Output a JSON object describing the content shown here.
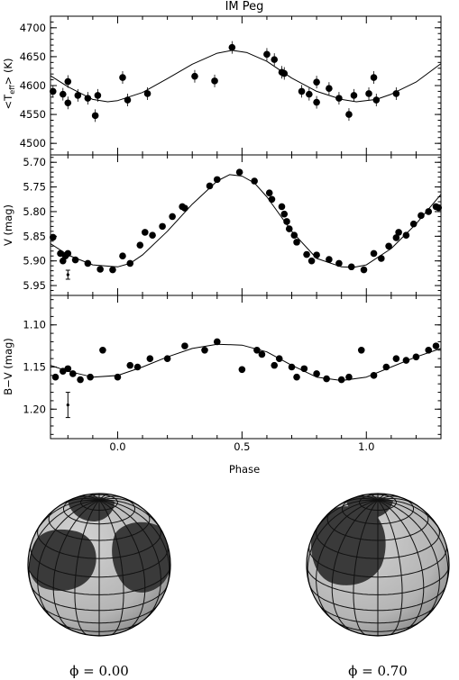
{
  "chart_data": [
    {
      "type": "scatter",
      "title": "IM Peg",
      "ylabel": "<T_eff> (K)",
      "xlim": [
        -0.27,
        1.3
      ],
      "ylim": [
        4480,
        4720
      ],
      "yticks": [
        4500,
        4550,
        4600,
        4650,
        4700
      ],
      "points": [
        [
          -0.26,
          4590
        ],
        [
          -0.22,
          4585
        ],
        [
          -0.2,
          4607
        ],
        [
          -0.2,
          4570
        ],
        [
          -0.16,
          4583
        ],
        [
          -0.12,
          4578
        ],
        [
          -0.09,
          4548
        ],
        [
          -0.08,
          4583
        ],
        [
          0.02,
          4614
        ],
        [
          0.04,
          4575
        ],
        [
          0.12,
          4586
        ],
        [
          0.31,
          4616
        ],
        [
          0.39,
          4608
        ],
        [
          0.46,
          4666
        ],
        [
          0.6,
          4654
        ],
        [
          0.63,
          4645
        ],
        [
          0.66,
          4623
        ],
        [
          0.67,
          4621
        ],
        [
          0.74,
          4590
        ],
        [
          0.77,
          4585
        ],
        [
          0.8,
          4606
        ],
        [
          0.8,
          4571
        ],
        [
          0.85,
          4595
        ],
        [
          0.89,
          4578
        ],
        [
          0.93,
          4550
        ],
        [
          0.95,
          4583
        ],
        [
          1.01,
          4586
        ],
        [
          1.03,
          4614
        ],
        [
          1.04,
          4575
        ],
        [
          1.12,
          4586
        ]
      ],
      "model_curve": [
        [
          -0.27,
          4617
        ],
        [
          -0.2,
          4598
        ],
        [
          -0.1,
          4576
        ],
        [
          -0.04,
          4572
        ],
        [
          0.0,
          4574
        ],
        [
          0.1,
          4588
        ],
        [
          0.2,
          4612
        ],
        [
          0.3,
          4637
        ],
        [
          0.4,
          4656
        ],
        [
          0.46,
          4661
        ],
        [
          0.52,
          4657
        ],
        [
          0.6,
          4642
        ],
        [
          0.7,
          4613
        ],
        [
          0.8,
          4590
        ],
        [
          0.9,
          4576
        ],
        [
          0.96,
          4572
        ],
        [
          1.04,
          4576
        ],
        [
          1.1,
          4585
        ],
        [
          1.2,
          4606
        ],
        [
          1.3,
          4638
        ]
      ]
    },
    {
      "type": "scatter",
      "ylabel": "V (mag)",
      "xlim": [
        -0.27,
        1.3
      ],
      "ylim": [
        5.97,
        5.685
      ],
      "yticks": [
        5.7,
        5.75,
        5.8,
        5.85,
        5.9,
        5.95
      ],
      "points": [
        [
          -0.26,
          5.852
        ],
        [
          -0.23,
          5.885
        ],
        [
          -0.22,
          5.9
        ],
        [
          -0.21,
          5.89
        ],
        [
          -0.2,
          5.885
        ],
        [
          -0.17,
          5.898
        ],
        [
          -0.12,
          5.905
        ],
        [
          -0.07,
          5.917
        ],
        [
          -0.02,
          5.918
        ],
        [
          0.02,
          5.89
        ],
        [
          0.05,
          5.905
        ],
        [
          0.09,
          5.868
        ],
        [
          0.11,
          5.842
        ],
        [
          0.14,
          5.848
        ],
        [
          0.18,
          5.83
        ],
        [
          0.22,
          5.81
        ],
        [
          0.26,
          5.79
        ],
        [
          0.27,
          5.793
        ],
        [
          0.37,
          5.748
        ],
        [
          0.4,
          5.735
        ],
        [
          0.49,
          5.72
        ],
        [
          0.55,
          5.738
        ],
        [
          0.61,
          5.762
        ],
        [
          0.62,
          5.775
        ],
        [
          0.66,
          5.79
        ],
        [
          0.67,
          5.805
        ],
        [
          0.68,
          5.82
        ],
        [
          0.69,
          5.835
        ],
        [
          0.71,
          5.848
        ],
        [
          0.72,
          5.862
        ],
        [
          0.76,
          5.887
        ],
        [
          0.78,
          5.9
        ],
        [
          0.8,
          5.888
        ],
        [
          0.85,
          5.897
        ],
        [
          0.89,
          5.905
        ],
        [
          0.94,
          5.912
        ],
        [
          0.99,
          5.918
        ],
        [
          1.03,
          5.885
        ],
        [
          1.06,
          5.895
        ],
        [
          1.09,
          5.87
        ],
        [
          1.12,
          5.853
        ],
        [
          1.13,
          5.842
        ],
        [
          1.16,
          5.848
        ],
        [
          1.19,
          5.825
        ],
        [
          1.22,
          5.808
        ],
        [
          1.25,
          5.8
        ],
        [
          1.28,
          5.79
        ],
        [
          1.29,
          5.792
        ]
      ],
      "model_curve": [
        [
          -0.27,
          5.865
        ],
        [
          -0.2,
          5.888
        ],
        [
          -0.1,
          5.908
        ],
        [
          0.0,
          5.912
        ],
        [
          0.05,
          5.905
        ],
        [
          0.1,
          5.888
        ],
        [
          0.2,
          5.84
        ],
        [
          0.3,
          5.785
        ],
        [
          0.4,
          5.738
        ],
        [
          0.45,
          5.725
        ],
        [
          0.5,
          5.728
        ],
        [
          0.55,
          5.742
        ],
        [
          0.6,
          5.77
        ],
        [
          0.7,
          5.84
        ],
        [
          0.8,
          5.895
        ],
        [
          0.9,
          5.912
        ],
        [
          0.95,
          5.913
        ],
        [
          1.0,
          5.908
        ],
        [
          1.1,
          5.875
        ],
        [
          1.2,
          5.825
        ],
        [
          1.3,
          5.765
        ]
      ]
    },
    {
      "type": "scatter",
      "xlabel": "Phase",
      "ylabel": "B−V (mag)",
      "xlim": [
        -0.27,
        1.3
      ],
      "xticks": [
        0.0,
        0.5,
        1.0
      ],
      "xtick_labels": [
        "0.0",
        "0.5",
        "1.0"
      ],
      "ylim": [
        1.235,
        1.065
      ],
      "yticks": [
        1.1,
        1.15,
        1.2
      ],
      "points": [
        [
          -0.25,
          1.162
        ],
        [
          -0.22,
          1.155
        ],
        [
          -0.2,
          1.152
        ],
        [
          -0.18,
          1.158
        ],
        [
          -0.15,
          1.165
        ],
        [
          -0.11,
          1.162
        ],
        [
          -0.06,
          1.13
        ],
        [
          0.0,
          1.162
        ],
        [
          0.05,
          1.148
        ],
        [
          0.08,
          1.15
        ],
        [
          0.13,
          1.14
        ],
        [
          0.2,
          1.14
        ],
        [
          0.27,
          1.125
        ],
        [
          0.35,
          1.13
        ],
        [
          0.4,
          1.12
        ],
        [
          0.5,
          1.153
        ],
        [
          0.56,
          1.13
        ],
        [
          0.58,
          1.135
        ],
        [
          0.63,
          1.148
        ],
        [
          0.65,
          1.14
        ],
        [
          0.7,
          1.15
        ],
        [
          0.72,
          1.162
        ],
        [
          0.75,
          1.152
        ],
        [
          0.8,
          1.158
        ],
        [
          0.84,
          1.164
        ],
        [
          0.9,
          1.165
        ],
        [
          0.93,
          1.162
        ],
        [
          0.98,
          1.13
        ],
        [
          1.03,
          1.16
        ],
        [
          1.08,
          1.15
        ],
        [
          1.12,
          1.14
        ],
        [
          1.16,
          1.142
        ],
        [
          1.2,
          1.138
        ],
        [
          1.25,
          1.13
        ],
        [
          1.28,
          1.125
        ]
      ],
      "model_curve": [
        [
          -0.27,
          1.148
        ],
        [
          -0.2,
          1.155
        ],
        [
          -0.1,
          1.162
        ],
        [
          0.0,
          1.16
        ],
        [
          0.1,
          1.15
        ],
        [
          0.2,
          1.138
        ],
        [
          0.3,
          1.128
        ],
        [
          0.4,
          1.123
        ],
        [
          0.5,
          1.124
        ],
        [
          0.6,
          1.132
        ],
        [
          0.7,
          1.148
        ],
        [
          0.8,
          1.162
        ],
        [
          0.9,
          1.166
        ],
        [
          1.0,
          1.162
        ],
        [
          1.1,
          1.15
        ],
        [
          1.2,
          1.138
        ],
        [
          1.3,
          1.128
        ]
      ]
    }
  ],
  "figure": {
    "title": "IM Peg",
    "xlabel": "Phase",
    "panel1_ylabel_pre": "<T",
    "panel1_ylabel_sub": "eff",
    "panel1_ylabel_post": "> (K)",
    "panel2_ylabel": "V (mag)",
    "panel3_ylabel": "B−V (mag)"
  },
  "spot_maps": [
    {
      "phase_label": "ϕ = 0.00"
    },
    {
      "phase_label": "ϕ = 0.70"
    }
  ],
  "colors": {
    "globe_fill": "#bdbdbd",
    "spot_fill": "#3a3a3a",
    "grid_line": "#111111"
  }
}
